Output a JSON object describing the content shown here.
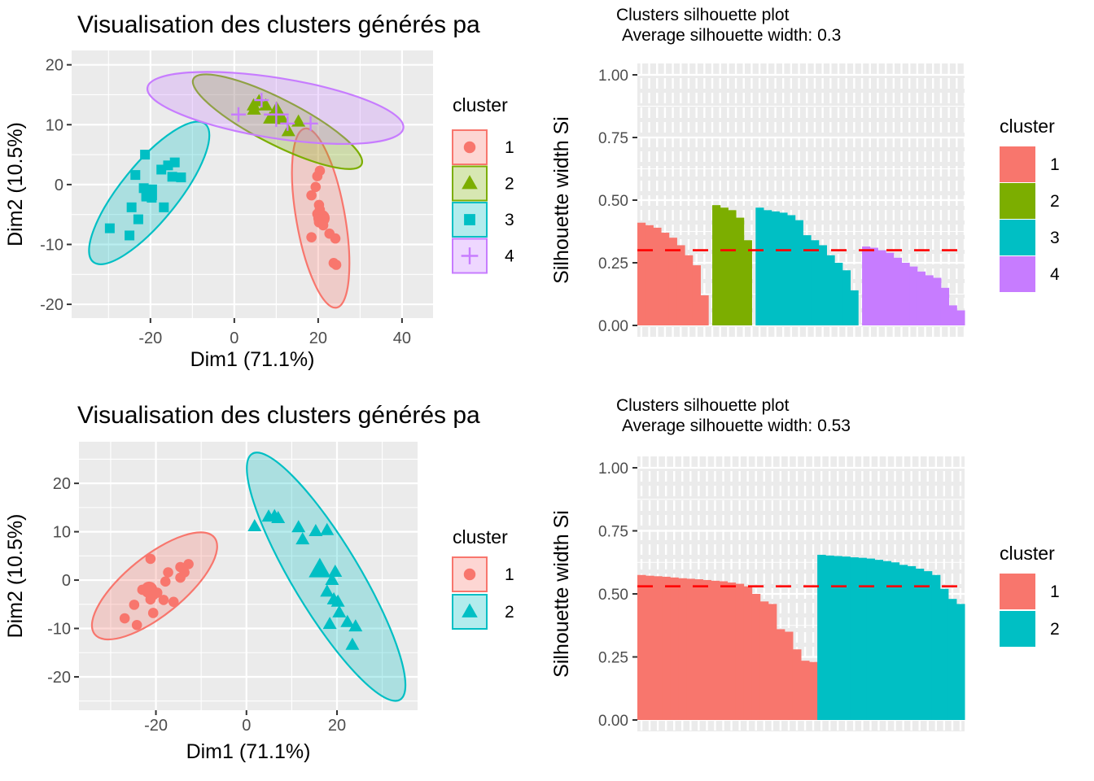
{
  "colors": {
    "cluster1": "#F8766D",
    "cluster2": "#7CAE00",
    "cluster3": "#00BFC4",
    "cluster4": "#C77CFF",
    "panel_bg": "#EBEBEB",
    "grid": "#FFFFFF",
    "avg_line": "#FF0000",
    "tick_text": "#4D4D4D",
    "tick_mark": "#333333",
    "title_text": "#000000"
  },
  "chart_data": [
    {
      "type": "scatter",
      "title": "Visualisation des clusters générés pa",
      "xlabel": "Dim1 (71.1%)",
      "ylabel": "Dim2 (10.5%)",
      "xlim": [
        -38.8,
        47.4
      ],
      "ylim": [
        -22.3,
        22.4
      ],
      "xticks": [
        -20,
        0,
        20,
        40
      ],
      "yticks": [
        -20,
        -10,
        0,
        10,
        20
      ],
      "xminor": [
        -30,
        -10,
        10,
        30
      ],
      "yminor": [
        -15,
        -5,
        5,
        15
      ],
      "grid": true,
      "legend_title": "cluster",
      "legend_position": "right",
      "legend_style": "keyed",
      "series": [
        {
          "name": "1",
          "color": "#F8766D",
          "shape": "circle",
          "points": [
            [
              20.4,
              2.3
            ],
            [
              19.8,
              1.4
            ],
            [
              19.4,
              -0.4
            ],
            [
              18.4,
              -1.8
            ],
            [
              20.2,
              -3.4
            ],
            [
              20.4,
              -4.2
            ],
            [
              19.8,
              -4.9
            ],
            [
              20.8,
              -5.6,
              1.6
            ],
            [
              21.4,
              -5.8
            ],
            [
              20.2,
              -6.3
            ],
            [
              21.2,
              -6.8
            ],
            [
              22.7,
              -8.2
            ],
            [
              24.1,
              -9
            ],
            [
              18.4,
              -8.8
            ],
            [
              23.7,
              -13.1
            ],
            [
              24.3,
              -13.4
            ]
          ],
          "ellipse": {
            "cx": 20.6,
            "cy": -5.6,
            "a": 21.7,
            "b": 5.8,
            "angle": 80
          }
        },
        {
          "name": "2",
          "color": "#7CAE00",
          "shape": "triangle",
          "points": [
            [
              4.6,
              13.2
            ],
            [
              5.9,
              13.9
            ],
            [
              7.5,
              13.2
            ],
            [
              4.7,
              12.5
            ],
            [
              10.1,
              12.7
            ],
            [
              10.4,
              11.6,
              1.5
            ],
            [
              8.5,
              11
            ],
            [
              11.5,
              10.9
            ],
            [
              15.3,
              10.5
            ],
            [
              12.9,
              8.9
            ]
          ],
          "ellipse": {
            "cx": 10.3,
            "cy": 10.5,
            "a": 22.5,
            "b": 5.4,
            "angle": 27
          }
        },
        {
          "name": "3",
          "color": "#00BFC4",
          "shape": "square",
          "points": [
            [
              -21.3,
              5
            ],
            [
              -17.4,
              2.5
            ],
            [
              -15.8,
              3.2
            ],
            [
              -14.2,
              3.7
            ],
            [
              -12.7,
              1.2
            ],
            [
              -23.6,
              1.6
            ],
            [
              -14.8,
              1.3
            ],
            [
              -21.6,
              -0.6
            ],
            [
              -20.3,
              -1.3,
              1.6
            ],
            [
              -21,
              -2
            ],
            [
              -19.7,
              -2.2
            ],
            [
              -24.5,
              -3.8
            ],
            [
              -22.9,
              -5.8
            ],
            [
              -16.8,
              -3.8
            ],
            [
              -25,
              -8.5
            ],
            [
              -29.7,
              -7.3
            ]
          ],
          "ellipse": {
            "cx": -20.3,
            "cy": -1.4,
            "a": 21.2,
            "b": 6.8,
            "angle": -51
          }
        },
        {
          "name": "4",
          "color": "#C77CFF",
          "shape": "plus",
          "points": [
            [
              1,
              11.7
            ],
            [
              6.5,
              14.1
            ],
            [
              10,
              11.7,
              1.7
            ],
            [
              12.7,
              10.2
            ],
            [
              18.2,
              10.2
            ]
          ],
          "ellipse": {
            "cx": 9.8,
            "cy": 12.8,
            "a": 30.9,
            "b": 7.2,
            "angle": 9
          }
        }
      ]
    },
    {
      "type": "silhouette",
      "title_line1": "Clusters silhouette plot",
      "title_line2": "Average silhouette width: 0.3",
      "ylabel": "Silhouette width Si",
      "ylim": [
        0,
        1
      ],
      "yticks": [
        {
          "v": 1,
          "label": "1.00"
        },
        {
          "v": 0.75,
          "label": "0.75"
        },
        {
          "v": 0.5,
          "label": "0.50"
        },
        {
          "v": 0.25,
          "label": "0.25"
        },
        {
          "v": 0,
          "label": "0.00"
        }
      ],
      "avg_width": 0.3,
      "legend_title": "cluster",
      "legend_position": "right",
      "legend_style": "fill",
      "clusters": [
        {
          "name": "1",
          "color": "#F8766D",
          "values": [
            0.41,
            0.4,
            0.39,
            0.37,
            0.35,
            0.32,
            0.28,
            0.24,
            0.12
          ]
        },
        {
          "name": "2",
          "color": "#7CAE00",
          "values": [
            0.48,
            0.47,
            0.46,
            0.43,
            0.34
          ]
        },
        {
          "name": "3",
          "color": "#00BFC4",
          "values": [
            0.47,
            0.46,
            0.455,
            0.45,
            0.44,
            0.42,
            0.36,
            0.34,
            0.32,
            0.28,
            0.25,
            0.22,
            0.14
          ]
        },
        {
          "name": "4",
          "color": "#C77CFF",
          "values": [
            0.315,
            0.31,
            0.3,
            0.29,
            0.27,
            0.25,
            0.235,
            0.215,
            0.2,
            0.19,
            0.15,
            0.08,
            0.06
          ]
        }
      ]
    },
    {
      "type": "scatter",
      "title": "Visualisation des clusters générés pa",
      "xlabel": "Dim1 (71.1%)",
      "ylabel": "Dim2 (10.5%)",
      "xlim": [
        -37,
        37.8
      ],
      "ylim": [
        -26.9,
        28.6
      ],
      "xticks": [
        -20,
        0,
        20
      ],
      "yticks": [
        -20,
        -10,
        0,
        10,
        20
      ],
      "xminor": [
        -30,
        -10,
        10,
        30
      ],
      "yminor": [
        -25,
        -15,
        -5,
        5,
        15,
        25
      ],
      "grid": true,
      "legend_title": "cluster",
      "legend_position": "right",
      "legend_style": "keyed",
      "series": [
        {
          "name": "1",
          "color": "#F8766D",
          "shape": "circle",
          "points": [
            [
              -21.2,
              4.4
            ],
            [
              -17.3,
              1.6
            ],
            [
              -14.6,
              2.7
            ],
            [
              -12.8,
              3.3
            ],
            [
              -17.9,
              -0.3
            ],
            [
              -23,
              -2
            ],
            [
              -21.5,
              -2,
              1.6
            ],
            [
              -20.6,
              -3.1
            ],
            [
              -19.7,
              -2.6
            ],
            [
              -21.2,
              -4
            ],
            [
              -14.6,
              0.5
            ],
            [
              -16.1,
              -4.5
            ],
            [
              -24.8,
              -5.1
            ],
            [
              -26.9,
              -7.9
            ],
            [
              -24.2,
              -9.3
            ],
            [
              -20.6,
              -6.8
            ],
            [
              -13.7,
              1.6
            ],
            [
              -18.3,
              -4.1
            ]
          ],
          "ellipse": {
            "cx": -20.3,
            "cy": -1.2,
            "a": 17,
            "b": 6.5,
            "angle": -39
          }
        },
        {
          "name": "2",
          "color": "#00BFC4",
          "shape": "triangle",
          "points": [
            [
              1.8,
              11.1
            ],
            [
              4.9,
              13.1
            ],
            [
              7,
              12.8
            ],
            [
              6.2,
              13.2
            ],
            [
              11.5,
              10.9
            ],
            [
              15.3,
              10.1
            ],
            [
              17.8,
              10.3
            ],
            [
              12.4,
              8.4
            ],
            [
              16.2,
              2.2,
              1.6
            ],
            [
              19.6,
              1.7
            ],
            [
              18.9,
              0
            ],
            [
              17.8,
              -2.4
            ],
            [
              19.3,
              -4
            ],
            [
              20.2,
              -4.5
            ],
            [
              20.5,
              -6.7
            ],
            [
              18.4,
              -9.1
            ],
            [
              22.3,
              -8.7
            ],
            [
              24.1,
              -9.6
            ],
            [
              23.4,
              -13.4
            ]
          ],
          "ellipse": {
            "cx": 17.6,
            "cy": 0.7,
            "a": 31.7,
            "b": 7.4,
            "angle": 59
          }
        }
      ]
    },
    {
      "type": "silhouette",
      "title_line1": "Clusters silhouette plot",
      "title_line2": "Average silhouette width: 0.53",
      "ylabel": "Silhouette width Si",
      "ylim": [
        0,
        1
      ],
      "yticks": [
        {
          "v": 1,
          "label": "1.00"
        },
        {
          "v": 0.75,
          "label": "0.75"
        },
        {
          "v": 0.5,
          "label": "0.50"
        },
        {
          "v": 0.25,
          "label": "0.25"
        },
        {
          "v": 0,
          "label": "0.00"
        }
      ],
      "avg_width": 0.53,
      "legend_title": "cluster",
      "legend_position": "right",
      "legend_style": "fill",
      "clusters": [
        {
          "name": "1",
          "color": "#F8766D",
          "values": [
            0.575,
            0.572,
            0.57,
            0.568,
            0.565,
            0.562,
            0.56,
            0.558,
            0.555,
            0.552,
            0.55,
            0.545,
            0.54,
            0.53,
            0.5,
            0.47,
            0.46,
            0.36,
            0.35,
            0.28,
            0.235,
            0.23
          ]
        },
        {
          "name": "2",
          "color": "#00BFC4",
          "values": [
            0.655,
            0.652,
            0.65,
            0.648,
            0.645,
            0.643,
            0.64,
            0.635,
            0.63,
            0.625,
            0.615,
            0.61,
            0.6,
            0.59,
            0.575,
            0.52,
            0.48,
            0.46
          ]
        }
      ]
    }
  ]
}
